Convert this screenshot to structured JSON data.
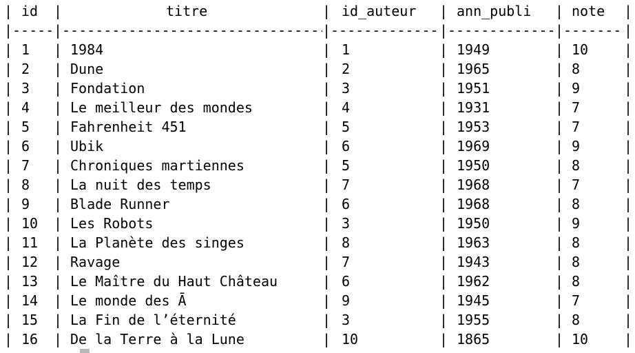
{
  "table": {
    "headers": [
      "id",
      "titre",
      "id_auteur",
      "ann_publi",
      "note"
    ],
    "rows": [
      [
        "1",
        "1984",
        "1",
        "1949",
        "10"
      ],
      [
        "2",
        "Dune",
        "2",
        "1965",
        "8"
      ],
      [
        "3",
        "Fondation",
        "3",
        "1951",
        "9"
      ],
      [
        "4",
        "Le meilleur des mondes",
        "4",
        "1931",
        "7"
      ],
      [
        "5",
        "Fahrenheit 451",
        "5",
        "1953",
        "7"
      ],
      [
        "6",
        "Ubik",
        "6",
        "1969",
        "9"
      ],
      [
        "7",
        "Chroniques martiennes",
        "5",
        "1950",
        "8"
      ],
      [
        "8",
        "La nuit des temps",
        "7",
        "1968",
        "7"
      ],
      [
        "9",
        "Blade Runner",
        "6",
        "1968",
        "8"
      ],
      [
        "10",
        "Les Robots",
        "3",
        "1950",
        "9"
      ],
      [
        "11",
        "La Planète des singes",
        "8",
        "1963",
        "8"
      ],
      [
        "12",
        "Ravage",
        "7",
        "1943",
        "8"
      ],
      [
        "13",
        "Le Maître du Haut Château",
        "6",
        "1962",
        "8"
      ],
      [
        "14",
        "Le monde des Ā",
        "9",
        "1945",
        "7"
      ],
      [
        "15",
        "La Fin de l’éternité",
        "3",
        "1955",
        "8"
      ],
      [
        "16",
        "De la Terre à la Lune",
        "10",
        "1865",
        "10"
      ]
    ]
  },
  "separator": {
    "pipe": "|",
    "dash": "--------------------------------------------------------------"
  }
}
